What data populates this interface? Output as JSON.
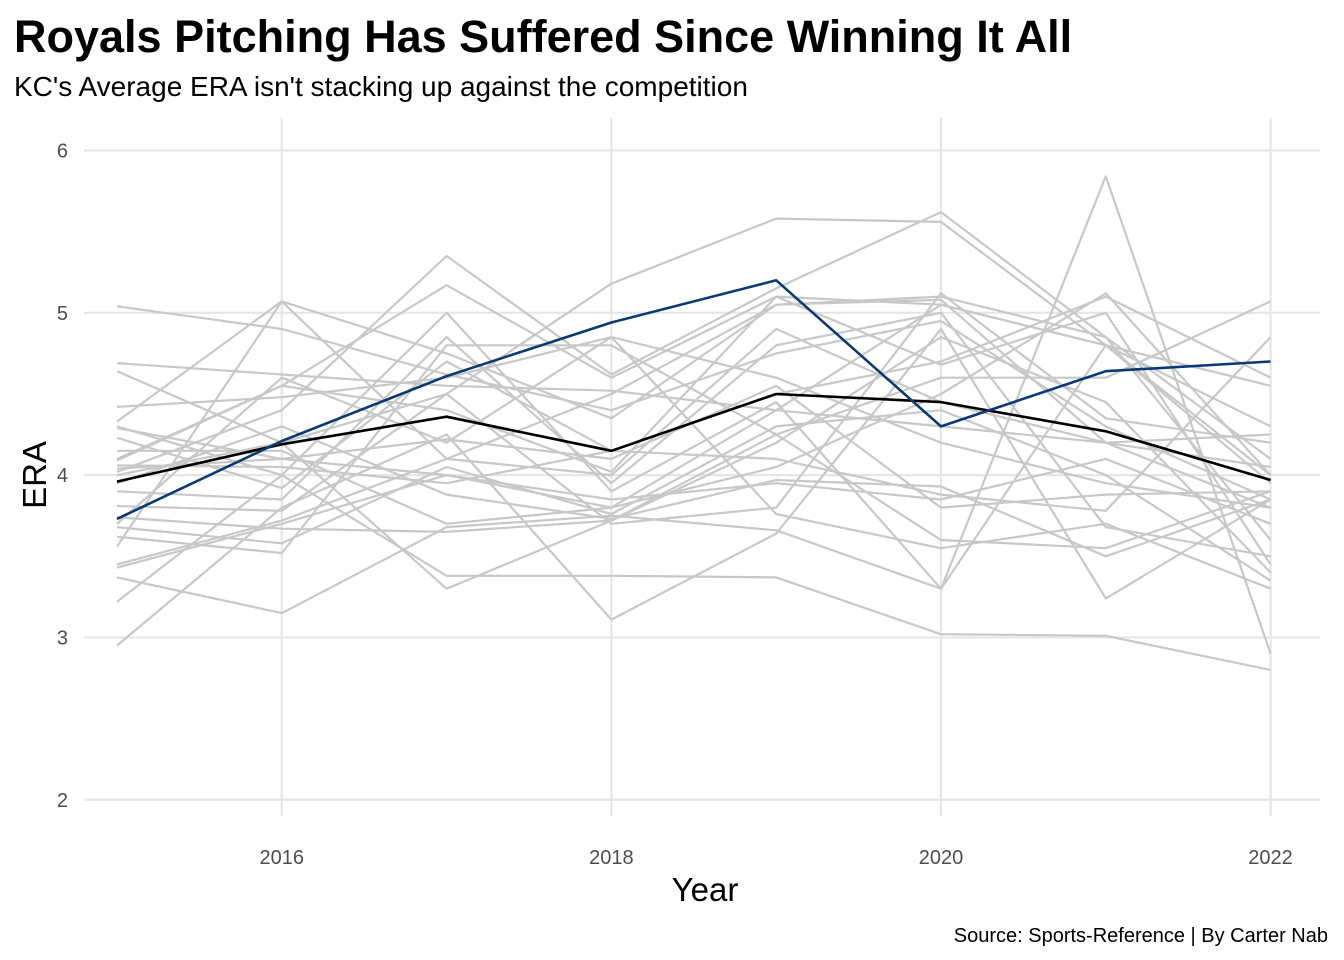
{
  "chart_data": {
    "type": "line",
    "title": "Royals Pitching Has Suffered Since Winning It All",
    "subtitle": "KC's Average ERA isn't stacking up against the competition",
    "xlabel": "Year",
    "ylabel": "ERA",
    "caption": "Source: Sports-Reference | By Carter Nab",
    "x": [
      2015,
      2016,
      2017,
      2018,
      2019,
      2020,
      2021,
      2022
    ],
    "xlim": [
      2014.8,
      2022.3
    ],
    "ylim": [
      1.9,
      6.2
    ],
    "x_ticks": [
      2016,
      2018,
      2020,
      2022
    ],
    "y_ticks": [
      2,
      3,
      4,
      5,
      6
    ],
    "grid": true,
    "legend": "none",
    "colors": {
      "other_teams": "#c8c8c8",
      "royals": "#0b3a73",
      "league_average": "#000000"
    },
    "other_teams": [
      [
        5.04,
        4.9,
        4.62,
        4.4,
        4.75,
        4.95,
        4.3,
        3.85
      ],
      [
        4.69,
        4.62,
        4.55,
        4.52,
        4.4,
        4.3,
        4.2,
        4.05
      ],
      [
        4.64,
        4.2,
        4.5,
        5.18,
        5.58,
        5.56,
        4.8,
        3.95
      ],
      [
        4.42,
        4.48,
        4.6,
        4.85,
        4.6,
        4.2,
        3.95,
        3.8
      ],
      [
        4.33,
        5.07,
        4.75,
        4.35,
        5.05,
        5.1,
        4.85,
        3.6
      ],
      [
        4.29,
        4.1,
        4.0,
        3.85,
        3.95,
        3.85,
        4.1,
        3.7
      ],
      [
        4.23,
        3.92,
        4.7,
        4.15,
        4.5,
        4.7,
        5.1,
        4.6
      ],
      [
        4.15,
        4.15,
        3.7,
        3.8,
        4.4,
        5.05,
        4.8,
        4.0
      ],
      [
        4.09,
        4.55,
        5.17,
        4.6,
        5.1,
        5.05,
        4.8,
        4.3
      ],
      [
        4.06,
        4.05,
        3.95,
        4.15,
        4.1,
        3.88,
        3.78,
        4.85
      ],
      [
        4.04,
        4.1,
        4.22,
        4.1,
        4.55,
        3.8,
        3.88,
        3.9
      ],
      [
        4.02,
        4.4,
        5.35,
        4.62,
        5.15,
        5.62,
        4.85,
        4.1
      ],
      [
        3.81,
        3.78,
        4.5,
        3.7,
        3.8,
        5.12,
        4.35,
        4.2
      ],
      [
        3.74,
        3.67,
        3.65,
        3.72,
        4.2,
        4.85,
        4.45,
        3.4
      ],
      [
        3.68,
        3.58,
        4.05,
        3.76,
        4.3,
        4.4,
        4.0,
        3.35
      ],
      [
        3.62,
        3.52,
        4.8,
        4.8,
        4.25,
        3.6,
        3.55,
        3.9
      ],
      [
        3.56,
        5.07,
        4.1,
        4.0,
        4.9,
        4.45,
        4.2,
        4.25
      ],
      [
        3.45,
        3.72,
        4.1,
        4.5,
        5.05,
        5.08,
        4.2,
        3.8
      ],
      [
        3.43,
        3.7,
        4.0,
        3.8,
        4.05,
        4.5,
        5.12,
        4.0
      ],
      [
        3.37,
        3.15,
        3.68,
        3.75,
        3.66,
        3.3,
        4.8,
        4.55
      ],
      [
        3.22,
        4.0,
        3.38,
        3.38,
        3.37,
        3.02,
        3.01,
        2.8
      ],
      [
        2.95,
        3.8,
        4.25,
        3.11,
        3.64,
        4.9,
        3.24,
        3.85
      ],
      [
        4.0,
        4.2,
        3.3,
        3.72,
        4.25,
        4.6,
        4.6,
        5.07
      ],
      [
        3.9,
        3.85,
        4.85,
        3.95,
        4.8,
        5.0,
        3.68,
        3.5
      ],
      [
        4.3,
        4.0,
        5.0,
        3.9,
        4.45,
        3.3,
        5.84,
        2.9
      ],
      [
        3.7,
        4.6,
        4.2,
        4.85,
        3.76,
        3.55,
        3.7,
        3.3
      ],
      [
        4.1,
        4.55,
        4.4,
        4.02,
        5.1,
        4.68,
        5.0,
        3.45
      ],
      [
        3.95,
        4.3,
        3.88,
        3.73,
        3.97,
        3.93,
        3.5,
        3.85
      ]
    ],
    "royals": [
      3.73,
      4.21,
      4.61,
      4.94,
      5.2,
      4.3,
      4.64,
      4.7
    ],
    "league_average": [
      3.96,
      4.19,
      4.36,
      4.15,
      4.5,
      4.45,
      4.27,
      3.97
    ]
  }
}
